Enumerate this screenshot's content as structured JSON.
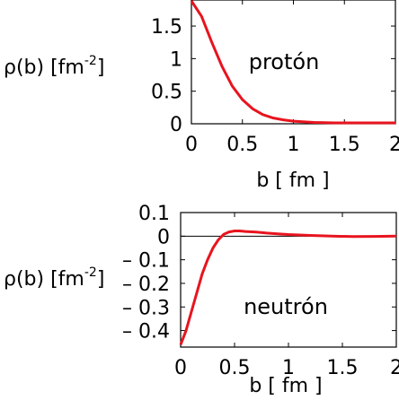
{
  "chart_data": [
    {
      "type": "line",
      "annotation": "protón",
      "xlabel": "b [ fm ]",
      "ylabel": "ρ(b) [fm",
      "ylabel_sup": "-2",
      "ylabel_close": "]",
      "xlim": [
        0,
        2
      ],
      "ylim": [
        0,
        1.9
      ],
      "xticks": [
        "0",
        "0.5",
        "1",
        "1.5",
        "2"
      ],
      "xtick_values": [
        0,
        0.5,
        1,
        1.5,
        2
      ],
      "yticks": [
        "0",
        "0.5",
        "1",
        "1.5"
      ],
      "ytick_values": [
        0,
        0.5,
        1,
        1.5
      ],
      "series": [
        {
          "color": "#e8141e",
          "x": [
            0,
            0.1,
            0.2,
            0.3,
            0.4,
            0.5,
            0.6,
            0.7,
            0.8,
            0.9,
            1.0,
            1.2,
            1.4,
            1.6,
            1.8,
            2.0
          ],
          "y": [
            1.92,
            1.65,
            1.25,
            0.88,
            0.58,
            0.37,
            0.23,
            0.14,
            0.09,
            0.06,
            0.04,
            0.02,
            0.012,
            0.008,
            0.005,
            0.004
          ]
        }
      ]
    },
    {
      "type": "line",
      "annotation": "neutrón",
      "xlabel": "b [ fm ]",
      "ylabel": "ρ(b) [fm",
      "ylabel_sup": "-2",
      "ylabel_close": "]",
      "xlim": [
        0,
        2
      ],
      "ylim": [
        -0.47,
        0.1
      ],
      "xticks": [
        "0",
        "0.5",
        "1",
        "1.5",
        "2"
      ],
      "xtick_values": [
        0,
        0.5,
        1,
        1.5,
        2
      ],
      "yticks": [
        "0.1",
        "0",
        "– 0.1",
        "– 0.2",
        "– 0.3",
        "– 0.4"
      ],
      "ytick_values": [
        0.1,
        0,
        -0.1,
        -0.2,
        -0.3,
        -0.4
      ],
      "zero_line": true,
      "series": [
        {
          "color": "#e8141e",
          "x": [
            0,
            0.05,
            0.1,
            0.15,
            0.2,
            0.25,
            0.3,
            0.35,
            0.4,
            0.45,
            0.5,
            0.55,
            0.6,
            0.7,
            0.8,
            0.9,
            1.0,
            1.2,
            1.4,
            1.6,
            1.8,
            2.0
          ],
          "y": [
            -0.46,
            -0.4,
            -0.32,
            -0.24,
            -0.16,
            -0.1,
            -0.05,
            -0.015,
            0.008,
            0.018,
            0.022,
            0.022,
            0.02,
            0.017,
            0.013,
            0.01,
            0.007,
            0.003,
            0.0,
            -0.002,
            -0.001,
            0.0
          ]
        }
      ]
    }
  ]
}
